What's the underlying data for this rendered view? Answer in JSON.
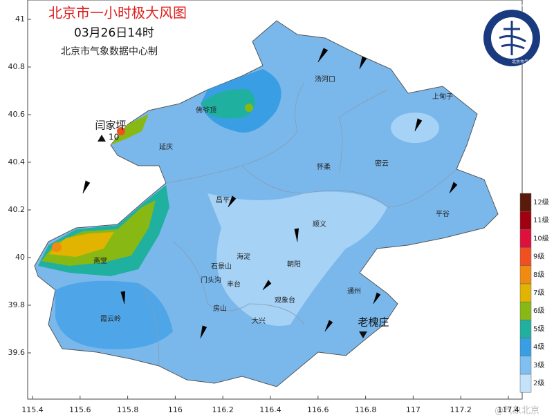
{
  "header": {
    "title": "北京市一小时极大风图",
    "time": "03月26日14时",
    "credit": "北京市气象数据中心制"
  },
  "axes": {
    "lat_ticks": [
      41,
      40.8,
      40.6,
      40.4,
      40.2,
      40,
      39.8,
      39.6
    ],
    "lon_ticks": [
      115.4,
      115.6,
      115.8,
      116,
      116.2,
      116.4,
      116.6,
      116.8,
      117,
      117.2,
      117.4
    ]
  },
  "places": [
    {
      "label": "汤河口"
    },
    {
      "label": "上甸子"
    },
    {
      "label": "佛爷顶"
    },
    {
      "label": "延庆"
    },
    {
      "label": "怀柔"
    },
    {
      "label": "密云"
    },
    {
      "label": "昌平"
    },
    {
      "label": "平谷"
    },
    {
      "label": "顺义"
    },
    {
      "label": "海淀"
    },
    {
      "label": "朝阳"
    },
    {
      "label": "斋堂"
    },
    {
      "label": "石景山"
    },
    {
      "label": "门头沟"
    },
    {
      "label": "丰台"
    },
    {
      "label": "观象台"
    },
    {
      "label": "通州"
    },
    {
      "label": "房山"
    },
    {
      "label": "大兴"
    },
    {
      "label": "霞云岭"
    }
  ],
  "stations": [
    {
      "name": "闫家坪",
      "value": "10"
    },
    {
      "name": "老槐庄"
    }
  ],
  "legend": {
    "levels": [
      {
        "label": "12级",
        "color": "#5a1a0a"
      },
      {
        "label": "11级",
        "color": "#a00010"
      },
      {
        "label": "10级",
        "color": "#e0103c"
      },
      {
        "label": "9级",
        "color": "#f05020"
      },
      {
        "label": "8级",
        "color": "#f08a10"
      },
      {
        "label": "7级",
        "color": "#e0b400"
      },
      {
        "label": "6级",
        "color": "#88b814"
      },
      {
        "label": "5级",
        "color": "#20b0a0"
      },
      {
        "label": "4级",
        "color": "#3a9ee4"
      },
      {
        "label": "3级",
        "color": "#80bff0"
      },
      {
        "label": "2级",
        "color": "#c4e2fa"
      }
    ]
  },
  "logo": {
    "text_en": "BEIJING METEOROLOGICAL SERVICE",
    "text_cn": "北京市气象局"
  },
  "watermark": "@气象北京"
}
